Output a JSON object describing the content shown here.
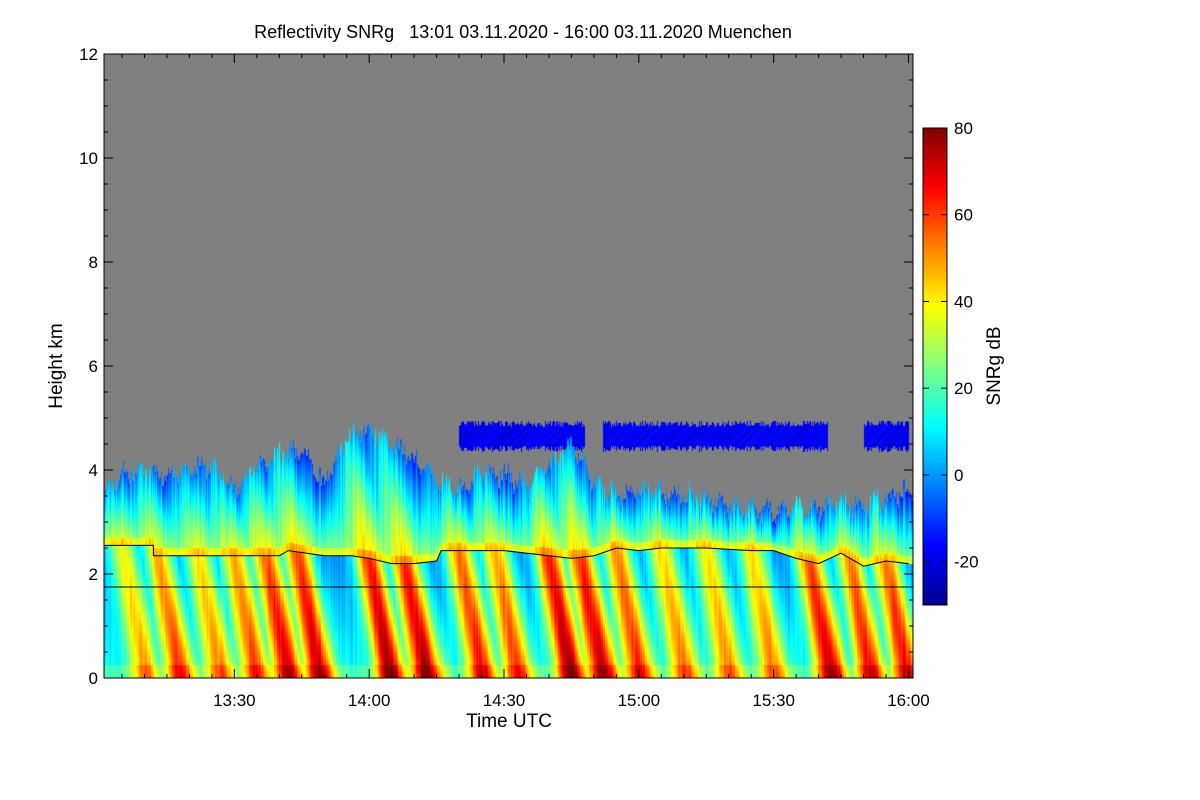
{
  "chart_data": {
    "type": "heatmap",
    "title": "Reflectivity SNRg   13:01 03.11.2020 - 16:00 03.11.2020 Muenchen",
    "xlabel": "Time UTC",
    "ylabel": "Height km",
    "xlim": [
      "13:01",
      "16:01"
    ],
    "ylim": [
      0,
      12
    ],
    "x_ticks": [
      "13:30",
      "14:00",
      "14:30",
      "15:00",
      "15:30",
      "16:00"
    ],
    "y_ticks": [
      0,
      2,
      4,
      6,
      8,
      10,
      12
    ],
    "colorbar": {
      "label": "SNRg dB",
      "range": [
        -30,
        80
      ],
      "ticks": [
        -20,
        0,
        20,
        40,
        60,
        80
      ],
      "colormap": [
        "#00008f",
        "#0000ff",
        "#0080ff",
        "#00ffff",
        "#80ff80",
        "#ffff00",
        "#ff8000",
        "#ff0000",
        "#800000"
      ]
    },
    "colors": {
      "no_signal": "#808080",
      "lines": "#000000"
    },
    "echo_top_km": [
      [
        "13:01",
        3.5
      ],
      [
        "13:05",
        3.9
      ],
      [
        "13:10",
        4.0
      ],
      [
        "13:15",
        3.9
      ],
      [
        "13:20",
        4.0
      ],
      [
        "13:25",
        4.1
      ],
      [
        "13:30",
        3.6
      ],
      [
        "13:35",
        4.1
      ],
      [
        "13:40",
        4.3
      ],
      [
        "13:45",
        4.4
      ],
      [
        "13:50",
        3.7
      ],
      [
        "13:55",
        4.6
      ],
      [
        "14:00",
        4.8
      ],
      [
        "14:05",
        4.5
      ],
      [
        "14:10",
        4.2
      ],
      [
        "14:15",
        3.8
      ],
      [
        "14:20",
        3.6
      ],
      [
        "14:25",
        4.0
      ],
      [
        "14:30",
        3.9
      ],
      [
        "14:35",
        3.7
      ],
      [
        "14:40",
        4.1
      ],
      [
        "14:45",
        4.5
      ],
      [
        "14:50",
        3.8
      ],
      [
        "14:55",
        3.5
      ],
      [
        "15:00",
        3.6
      ],
      [
        "15:10",
        3.5
      ],
      [
        "15:20",
        3.3
      ],
      [
        "15:30",
        3.2
      ],
      [
        "15:40",
        3.3
      ],
      [
        "15:45",
        3.4
      ],
      [
        "15:50",
        3.3
      ],
      [
        "15:55",
        3.5
      ],
      [
        "16:00",
        3.6
      ]
    ],
    "upper_layer": {
      "time_range": [
        "14:20",
        "16:00"
      ],
      "height_range_km": [
        4.3,
        5.0
      ]
    },
    "bright_band_line_km": [
      [
        "13:01",
        2.55
      ],
      [
        "13:12",
        2.55
      ],
      [
        "13:12",
        2.35
      ],
      [
        "13:40",
        2.35
      ],
      [
        "13:42",
        2.45
      ],
      [
        "13:50",
        2.35
      ],
      [
        "13:56",
        2.35
      ],
      [
        "14:00",
        2.3
      ],
      [
        "14:05",
        2.2
      ],
      [
        "14:10",
        2.2
      ],
      [
        "14:15",
        2.25
      ],
      [
        "14:16",
        2.45
      ],
      [
        "14:30",
        2.45
      ],
      [
        "14:40",
        2.35
      ],
      [
        "14:45",
        2.3
      ],
      [
        "14:50",
        2.35
      ],
      [
        "14:55",
        2.5
      ],
      [
        "15:00",
        2.45
      ],
      [
        "15:05",
        2.5
      ],
      [
        "15:15",
        2.5
      ],
      [
        "15:25",
        2.45
      ],
      [
        "15:30",
        2.45
      ],
      [
        "15:35",
        2.3
      ],
      [
        "15:40",
        2.2
      ],
      [
        "15:45",
        2.4
      ],
      [
        "15:50",
        2.15
      ],
      [
        "15:55",
        2.25
      ],
      [
        "16:00",
        2.2
      ]
    ],
    "reference_line_km": 1.75,
    "rain_shafts": [
      {
        "time": "13:05",
        "intensity": 0.55
      },
      {
        "time": "13:13",
        "intensity": 0.72
      },
      {
        "time": "13:22",
        "intensity": 0.6
      },
      {
        "time": "13:30",
        "intensity": 0.7
      },
      {
        "time": "13:37",
        "intensity": 0.85
      },
      {
        "time": "13:44",
        "intensity": 0.88
      },
      {
        "time": "14:00",
        "intensity": 0.95
      },
      {
        "time": "14:08",
        "intensity": 0.92
      },
      {
        "time": "14:20",
        "intensity": 0.8
      },
      {
        "time": "14:28",
        "intensity": 0.72
      },
      {
        "time": "14:40",
        "intensity": 0.95
      },
      {
        "time": "14:47",
        "intensity": 0.9
      },
      {
        "time": "14:55",
        "intensity": 0.75
      },
      {
        "time": "15:05",
        "intensity": 0.62
      },
      {
        "time": "15:15",
        "intensity": 0.58
      },
      {
        "time": "15:25",
        "intensity": 0.6
      },
      {
        "time": "15:38",
        "intensity": 0.88
      },
      {
        "time": "15:47",
        "intensity": 0.8
      },
      {
        "time": "15:55",
        "intensity": 0.82
      }
    ]
  }
}
